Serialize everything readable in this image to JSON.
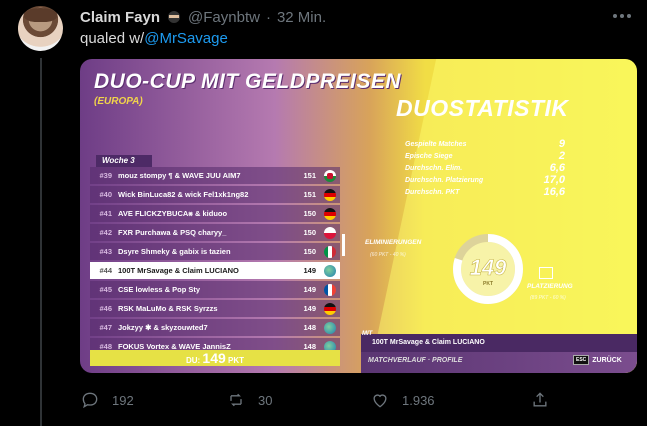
{
  "tweet": {
    "author_name": "Claim Fayn",
    "handle": "@Faynbtw",
    "separator": "·",
    "time": "32 Min.",
    "text_prefix": "qualed w/",
    "mention": "@MrSavage"
  },
  "game": {
    "title": "DUO-CUP MIT GELDPREISEN",
    "region": "(EUROPA)",
    "week_label": "Woche 3",
    "leaderboard": [
      {
        "rank": "#39",
        "team": "mouz stompy ¶ & WAVE JUU AIM7",
        "points": "151",
        "flag": "wales"
      },
      {
        "rank": "#40",
        "team": "Wick BinLuca82 & wick Fel1xk1ng82",
        "points": "151",
        "flag": "germany"
      },
      {
        "rank": "#41",
        "team": "AVE FLICKZYBUCA⨳ & kiduoo",
        "points": "150",
        "flag": "germany"
      },
      {
        "rank": "#42",
        "team": "FXR Purchawa & PSQ charyy_",
        "points": "150",
        "flag": "poland"
      },
      {
        "rank": "#43",
        "team": "Dsyre Shmeky & gabix is tazien",
        "points": "150",
        "flag": "italy"
      },
      {
        "rank": "#44",
        "team": "100T MrSavage & Claim LUCIANO",
        "points": "149",
        "flag": "globe",
        "selected": true
      },
      {
        "rank": "#45",
        "team": "CSE lowless & Pop Sty",
        "points": "149",
        "flag": "france"
      },
      {
        "rank": "#46",
        "team": "RSK MaLuMo & RSK Syrzzs",
        "points": "149",
        "flag": "germany"
      },
      {
        "rank": "#47",
        "team": "Jokzyy ✱ & skyzouwted7",
        "points": "148",
        "flag": "globe"
      },
      {
        "rank": "#48",
        "team": "FOKUS Vortex & WAVE JannisZ",
        "points": "148",
        "flag": "globe"
      }
    ],
    "footer_prefix": "DU:",
    "footer_points": "149",
    "footer_unit": "PKT",
    "stats_title": "DUOSTATISTIK",
    "stats": [
      {
        "label": "Gespielte Matches",
        "value": "9"
      },
      {
        "label": "Epische Siege",
        "value": "2"
      },
      {
        "label": "Durchschn. Elim.",
        "value": "6,6"
      },
      {
        "label": "Durchschn. Platzierung",
        "value": "17,0"
      },
      {
        "label": "Durchschn. PKT",
        "value": "16,6"
      }
    ],
    "ring_value": "149",
    "ring_unit": "PKT",
    "ring_fill_fraction": 0.8,
    "elim_label": "ELIMINIERUNGEN",
    "elim_sub": "(60 PKT - 40 %)",
    "placement_label": "PLATZIERUNG",
    "placement_sub": "(89 PKT - 60 %)",
    "team_prefix": "MIT",
    "team_name": "100T MrSavage & Claim LUCIANO",
    "bottom_links": "MATCHVERLAUF · PROFILE",
    "esc_key": "ESC",
    "back_label": "ZURÜCK"
  },
  "actions": {
    "replies": "192",
    "retweets": "30",
    "likes": "1.936"
  }
}
